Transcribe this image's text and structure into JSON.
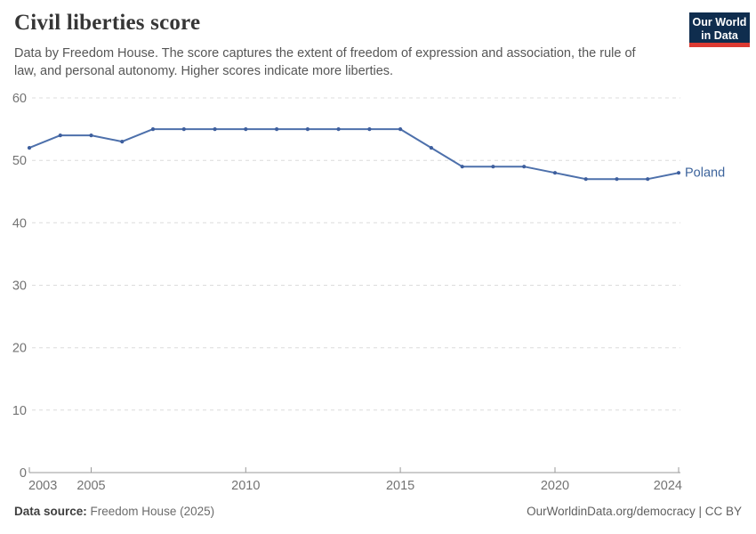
{
  "header": {
    "title": "Civil liberties score",
    "subtitle_lines": [
      "Data by Freedom House. The score captures the extent of freedom of expression and association, the rule of",
      "law, and personal autonomy. Higher scores indicate more liberties."
    ],
    "logo": {
      "line1": "Our World",
      "line2": "in Data",
      "bg": "#0f2d4e",
      "stripe": "#dc3a32"
    }
  },
  "chart_data": {
    "type": "line",
    "title": "Civil liberties score",
    "x": [
      2003,
      2004,
      2005,
      2006,
      2007,
      2008,
      2009,
      2010,
      2011,
      2012,
      2013,
      2014,
      2015,
      2016,
      2017,
      2018,
      2019,
      2020,
      2021,
      2022,
      2023,
      2024
    ],
    "series": [
      {
        "name": "Poland",
        "color": "#4d70ab",
        "values": [
          52,
          54,
          54,
          53,
          55,
          55,
          55,
          55,
          55,
          55,
          55,
          55,
          55,
          52,
          49,
          49,
          49,
          48,
          47,
          47,
          47,
          48
        ]
      }
    ],
    "xlabel": "",
    "ylabel": "",
    "ylim": [
      0,
      60
    ],
    "yticks": [
      0,
      10,
      20,
      30,
      40,
      50,
      60
    ],
    "xticks": [
      2003,
      2005,
      2010,
      2015,
      2020,
      2024
    ],
    "grid": "horizontal-dashed",
    "legend_position": "end-of-line-label",
    "colors": {
      "grid": "#dcdcdc",
      "axis": "#9a9a9a",
      "tick_label": "#737373",
      "marker": "#3e5f9e",
      "series_label": "#3d649c"
    }
  },
  "footer": {
    "source_label": "Data source:",
    "source_value": " Freedom House (2025)",
    "attribution": "OurWorldinData.org/democracy | CC BY"
  }
}
